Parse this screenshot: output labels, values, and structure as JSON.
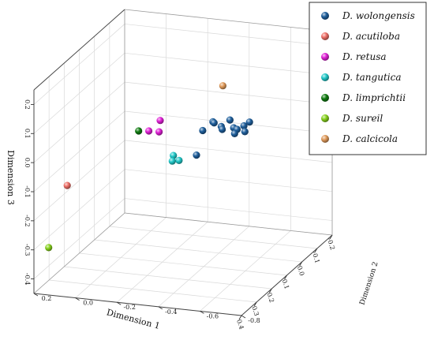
{
  "chart_data": {
    "type": "scatter3d",
    "title": "",
    "axes": {
      "x": {
        "label": "Dimension 1",
        "ticks": [
          "0.4",
          "0.3",
          "0.2",
          "0.1",
          "0.0",
          "-0.1",
          "-0.2"
        ]
      },
      "y": {
        "label": "Dimension 2",
        "ticks": [
          "-0.8",
          "-0.6",
          "-0.4",
          "-0.2",
          "0.0",
          "0.2"
        ]
      },
      "z": {
        "label": "Dimension 3",
        "ticks": [
          "0.2",
          "0.1",
          "0.0",
          "-0.1",
          "-0.2",
          "-0.3",
          "-0.4"
        ]
      }
    },
    "grid": true,
    "legend_position": "top-right",
    "series": [
      {
        "name": "D. wolongensis",
        "color": "#1f5f9c",
        "points": [
          {
            "x": -0.03,
            "y": -0.3,
            "z": -0.05
          },
          {
            "x": -0.05,
            "y": -0.34,
            "z": -0.03
          },
          {
            "x": -0.07,
            "y": -0.36,
            "z": -0.05
          },
          {
            "x": -0.07,
            "y": -0.42,
            "z": -0.05
          },
          {
            "x": -0.09,
            "y": -0.35,
            "z": -0.07
          },
          {
            "x": -0.09,
            "y": -0.41,
            "z": -0.08
          },
          {
            "x": -0.1,
            "y": -0.38,
            "z": -0.04
          },
          {
            "x": -0.11,
            "y": -0.44,
            "z": -0.06
          },
          {
            "x": -0.12,
            "y": -0.4,
            "z": -0.08
          },
          {
            "x": -0.12,
            "y": -0.46,
            "z": -0.05
          },
          {
            "x": -0.13,
            "y": -0.43,
            "z": -0.09
          },
          {
            "x": 0.04,
            "y": -0.4,
            "z": 0.02
          },
          {
            "x": 0.08,
            "y": -0.35,
            "z": -0.08
          }
        ]
      },
      {
        "name": "D. acutiloba",
        "color": "#ee7068",
        "points": [
          {
            "x": 0.18,
            "y": 0.2,
            "z": -0.18
          }
        ]
      },
      {
        "name": "D. retusa",
        "color": "#e021d6",
        "points": [
          {
            "x": 0.32,
            "y": -0.35,
            "z": 0.15
          },
          {
            "x": 0.34,
            "y": -0.31,
            "z": 0.12
          },
          {
            "x": 0.3,
            "y": -0.33,
            "z": 0.1
          }
        ]
      },
      {
        "name": "D. tangutica",
        "color": "#22c9c9",
        "points": [
          {
            "x": 0.37,
            "y": -0.45,
            "z": 0.06
          },
          {
            "x": 0.36,
            "y": -0.47,
            "z": 0.04
          },
          {
            "x": 0.35,
            "y": -0.43,
            "z": 0.03
          }
        ]
      },
      {
        "name": "D. limprichtii",
        "color": "#0f7a10",
        "points": [
          {
            "x": 0.27,
            "y": -0.21,
            "z": 0.08
          }
        ]
      },
      {
        "name": "D. sureil",
        "color": "#86d11c",
        "points": [
          {
            "x": 0.22,
            "y": 0.26,
            "z": -0.38
          }
        ]
      },
      {
        "name": "D. calcicola",
        "color": "#e09a5a",
        "points": [
          {
            "x": 0.18,
            "y": -0.55,
            "z": 0.22
          }
        ]
      }
    ]
  }
}
